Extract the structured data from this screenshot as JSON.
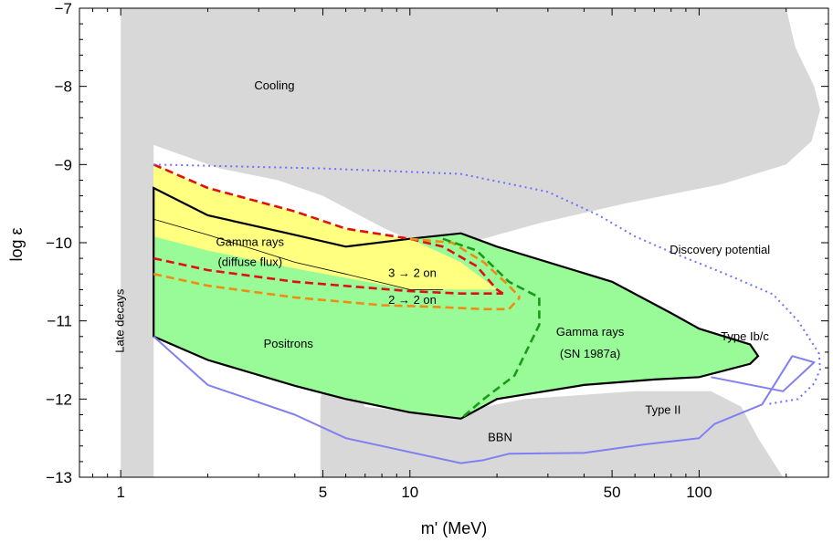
{
  "chart_data": {
    "type": "area",
    "title": "",
    "xlabel": "m' (MeV)",
    "ylabel": "log ε",
    "xscale": "log",
    "xlim": [
      0.72,
      280
    ],
    "ylim": [
      -13,
      -7
    ],
    "grid": false,
    "x_ticks": [
      1,
      5,
      10,
      50,
      100
    ],
    "x_tick_labels": [
      "1",
      "5",
      "10",
      "50",
      "100"
    ],
    "y_ticks": [
      -13,
      -12,
      -11,
      -10,
      -9,
      -8,
      -7
    ],
    "y_tick_labels": [
      "−13",
      "−12",
      "−11",
      "−10",
      "−9",
      "−8",
      "−7"
    ],
    "colors": {
      "excluded_gray": "#d8d8d8",
      "positrons_green": "#98fb98",
      "gamma_diffuse_yellow": "#ffff80",
      "red_dashed": "#e01010",
      "orange_dashed": "#f08c10",
      "green_dashed": "#1a9a1a",
      "bbn_blue": "#8080f0",
      "discovery_blue": "#7070ff"
    },
    "annotations": [
      {
        "key": "cooling",
        "text": "Cooling",
        "x": 3.4,
        "y": -8.0
      },
      {
        "key": "late_decays",
        "text": "Late decays",
        "x": 1.0,
        "y": -11.0,
        "rotation": -90
      },
      {
        "key": "gamma_diffuse_1",
        "text": "Gamma rays",
        "x": 2.8,
        "y": -10.0
      },
      {
        "key": "gamma_diffuse_2",
        "text": "(diffuse flux)",
        "x": 2.8,
        "y": -10.26
      },
      {
        "key": "three_to_two",
        "text": "3 → 2 on",
        "x": 10.2,
        "y": -10.4
      },
      {
        "key": "two_to_two",
        "text": "2 → 2 on",
        "x": 10.2,
        "y": -10.74
      },
      {
        "key": "positrons",
        "text": "Positrons",
        "x": 3.8,
        "y": -11.3
      },
      {
        "key": "gamma_sn_1",
        "text": "Gamma rays",
        "x": 42,
        "y": -11.15
      },
      {
        "key": "gamma_sn_2",
        "text": "(SN 1987a)",
        "x": 42,
        "y": -11.43
      },
      {
        "key": "discovery",
        "text": "Discovery potential",
        "x": 118,
        "y": -10.1
      },
      {
        "key": "type_ibc",
        "text": "Type Ib/c",
        "x": 144,
        "y": -11.21
      },
      {
        "key": "type_ii",
        "text": "Type II",
        "x": 75,
        "y": -12.15
      },
      {
        "key": "bbn",
        "text": "BBN",
        "x": 20.5,
        "y": -12.5
      }
    ],
    "regions": {
      "cooling": [
        [
          1.0,
          -7
        ],
        [
          200,
          -7
        ],
        [
          215,
          -7.5
        ],
        [
          250,
          -8.0
        ],
        [
          262,
          -8.3
        ],
        [
          245,
          -8.7
        ],
        [
          200,
          -9.0
        ],
        [
          120,
          -9.25
        ],
        [
          55,
          -9.5
        ],
        [
          28,
          -9.75
        ],
        [
          16,
          -10.0
        ],
        [
          12,
          -10.1
        ],
        [
          8,
          -9.8
        ],
        [
          5,
          -9.4
        ],
        [
          3.5,
          -9.2
        ],
        [
          2.2,
          -9.05
        ],
        [
          1.3,
          -8.75
        ],
        [
          1.3,
          -13
        ],
        [
          1.0,
          -13
        ]
      ],
      "bbn_excluded": [
        [
          4.9,
          -13
        ],
        [
          4.9,
          -12.0
        ],
        [
          5.4,
          -11.35
        ],
        [
          7,
          -12.1
        ],
        [
          13,
          -12.2
        ],
        [
          25,
          -12.0
        ],
        [
          60,
          -11.9
        ],
        [
          110,
          -11.9
        ],
        [
          140,
          -12.1
        ],
        [
          160,
          -12.5
        ],
        [
          195,
          -13
        ]
      ],
      "gamma_sn1987a": [
        [
          1.3,
          -9.3
        ],
        [
          2,
          -9.65
        ],
        [
          4,
          -9.9
        ],
        [
          6,
          -10.05
        ],
        [
          10,
          -9.95
        ],
        [
          15,
          -9.88
        ],
        [
          20,
          -10.05
        ],
        [
          50,
          -10.5
        ],
        [
          80,
          -10.9
        ],
        [
          100,
          -11.1
        ],
        [
          150,
          -11.3
        ],
        [
          160,
          -11.45
        ],
        [
          150,
          -11.55
        ],
        [
          100,
          -11.72
        ],
        [
          70,
          -11.75
        ],
        [
          40,
          -11.82
        ],
        [
          20,
          -12.0
        ],
        [
          15,
          -12.25
        ],
        [
          10,
          -12.17
        ],
        [
          6,
          -12.0
        ],
        [
          4,
          -11.83
        ],
        [
          2,
          -11.5
        ],
        [
          1.3,
          -11.2
        ]
      ],
      "gamma_diffuse": [
        [
          1.3,
          -9.0
        ],
        [
          2,
          -9.3
        ],
        [
          4,
          -9.6
        ],
        [
          6,
          -9.82
        ],
        [
          10,
          -9.95
        ],
        [
          15,
          -10.25
        ],
        [
          20,
          -10.6
        ],
        [
          15,
          -10.6
        ],
        [
          10,
          -10.6
        ],
        [
          6,
          -10.45
        ],
        [
          4,
          -10.33
        ],
        [
          2,
          -10.1
        ],
        [
          1.3,
          -9.92
        ]
      ],
      "gamma_diffuse_mid": [
        [
          1.3,
          -9.7
        ],
        [
          2,
          -9.9
        ],
        [
          4,
          -10.25
        ],
        [
          6,
          -10.4
        ],
        [
          10,
          -10.6
        ],
        [
          13,
          -10.6
        ]
      ]
    },
    "series": [
      {
        "key": "red",
        "style": "dashed",
        "upper": [
          [
            1.3,
            -9.0
          ],
          [
            2,
            -9.3
          ],
          [
            4,
            -9.6
          ],
          [
            6,
            -9.82
          ],
          [
            10,
            -9.95
          ],
          [
            13,
            -10.05
          ],
          [
            17,
            -10.3
          ],
          [
            20,
            -10.6
          ],
          [
            21,
            -10.65
          ]
        ],
        "lower": [
          [
            1.3,
            -10.2
          ],
          [
            2,
            -10.35
          ],
          [
            4,
            -10.5
          ],
          [
            10,
            -10.62
          ],
          [
            15,
            -10.65
          ],
          [
            21,
            -10.65
          ]
        ]
      },
      {
        "key": "orange",
        "style": "dashed",
        "upper": [
          [
            10,
            -9.95
          ],
          [
            14,
            -10.0
          ],
          [
            18,
            -10.25
          ],
          [
            22,
            -10.55
          ],
          [
            24,
            -10.7
          ]
        ],
        "lower": [
          [
            1.3,
            -10.4
          ],
          [
            2,
            -10.55
          ],
          [
            4,
            -10.7
          ],
          [
            8,
            -10.8
          ],
          [
            12,
            -10.82
          ],
          [
            18,
            -10.85
          ],
          [
            22,
            -10.85
          ],
          [
            24,
            -10.7
          ]
        ]
      },
      {
        "key": "green",
        "style": "dashed",
        "points": [
          [
            13,
            -9.95
          ],
          [
            17,
            -10.1
          ],
          [
            22,
            -10.5
          ],
          [
            28,
            -10.7
          ],
          [
            28,
            -11.05
          ],
          [
            23,
            -11.7
          ],
          [
            18,
            -12.0
          ],
          [
            15,
            -12.25
          ]
        ]
      },
      {
        "key": "bbn",
        "style": "solid",
        "points": [
          [
            1.3,
            -11.2
          ],
          [
            2,
            -11.82
          ],
          [
            4,
            -12.2
          ],
          [
            6,
            -12.5
          ],
          [
            15,
            -12.82
          ],
          [
            18,
            -12.78
          ],
          [
            22,
            -12.7
          ],
          [
            40,
            -12.69
          ],
          [
            65,
            -12.58
          ],
          [
            100,
            -12.5
          ],
          [
            113,
            -12.32
          ],
          [
            165,
            -12.07
          ],
          [
            210,
            -11.45
          ],
          [
            250,
            -11.53
          ],
          [
            195,
            -11.9
          ],
          [
            110,
            -11.72
          ]
        ]
      },
      {
        "key": "discovery",
        "style": "dotted",
        "points": [
          [
            1.3,
            -9.0
          ],
          [
            5,
            -9.05
          ],
          [
            15,
            -9.12
          ],
          [
            30,
            -9.35
          ],
          [
            45,
            -9.65
          ],
          [
            60,
            -9.92
          ],
          [
            80,
            -10.12
          ],
          [
            120,
            -10.38
          ],
          [
            180,
            -10.66
          ],
          [
            220,
            -11.0
          ],
          [
            260,
            -11.42
          ],
          [
            262,
            -11.62
          ],
          [
            250,
            -11.8
          ],
          [
            220,
            -12.0
          ],
          [
            170,
            -12.07
          ]
        ]
      }
    ]
  }
}
